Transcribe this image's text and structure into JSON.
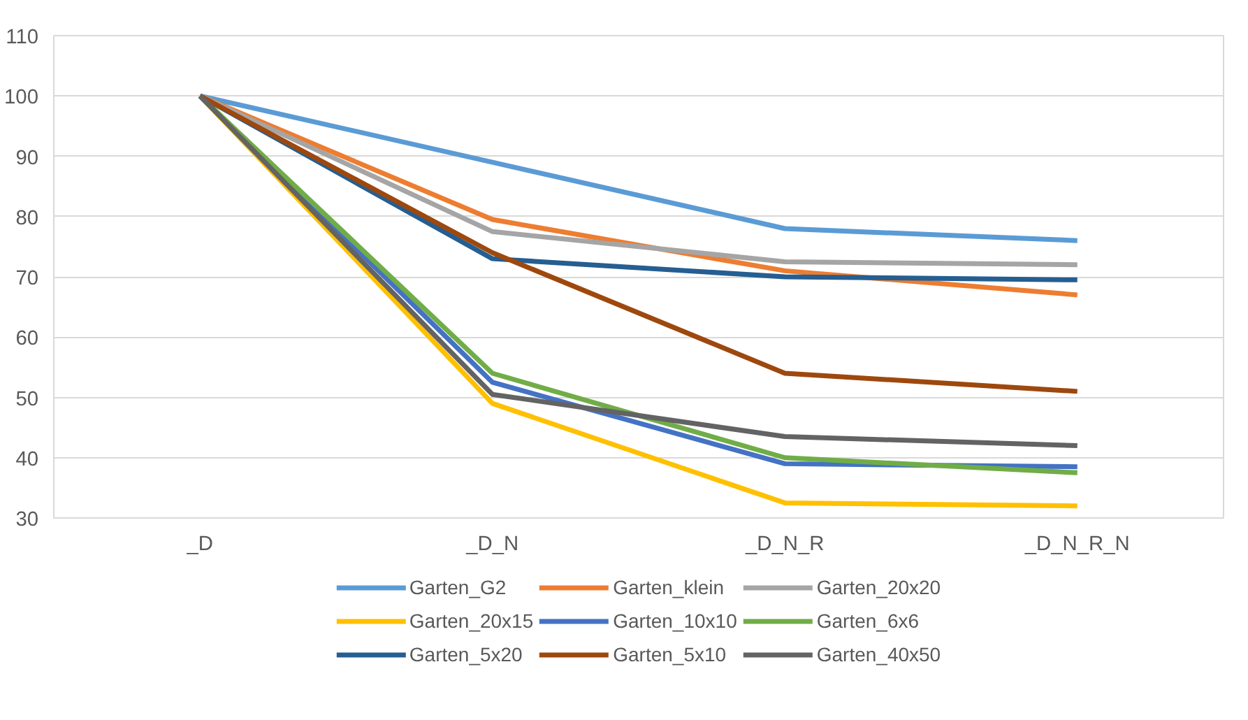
{
  "chart_data": {
    "type": "line",
    "categories": [
      "_D",
      "_D_N",
      "_D_N_R",
      "_D_N_R_N"
    ],
    "ylim": [
      30,
      110
    ],
    "yticks": [
      30,
      40,
      50,
      60,
      70,
      80,
      90,
      100,
      110
    ],
    "grid": "y",
    "legend": "bottom",
    "marker": "none",
    "series": [
      {
        "name": "Garten_G2",
        "color": "#5b9bd5",
        "values": [
          100,
          89,
          78,
          76
        ]
      },
      {
        "name": "Garten_klein",
        "color": "#ed7d31",
        "values": [
          100,
          79.5,
          71,
          67
        ]
      },
      {
        "name": "Garten_20x20",
        "color": "#a5a5a5",
        "values": [
          100,
          77.5,
          72.5,
          72
        ]
      },
      {
        "name": "Garten_20x15",
        "color": "#ffc000",
        "values": [
          100,
          49,
          32.5,
          32
        ]
      },
      {
        "name": "Garten_10x10",
        "color": "#4472c4",
        "values": [
          100,
          52.5,
          39,
          38.5
        ]
      },
      {
        "name": "Garten_6x6",
        "color": "#70ad47",
        "values": [
          100,
          54,
          40,
          37.5
        ]
      },
      {
        "name": "Garten_5x20",
        "color": "#255e91",
        "values": [
          100,
          73,
          70,
          69.5
        ]
      },
      {
        "name": "Garten_5x10",
        "color": "#9e480e",
        "values": [
          100,
          74,
          54,
          51
        ]
      },
      {
        "name": "Garten_40x50",
        "color": "#636363",
        "values": [
          100,
          50.5,
          43.5,
          42
        ]
      }
    ]
  }
}
